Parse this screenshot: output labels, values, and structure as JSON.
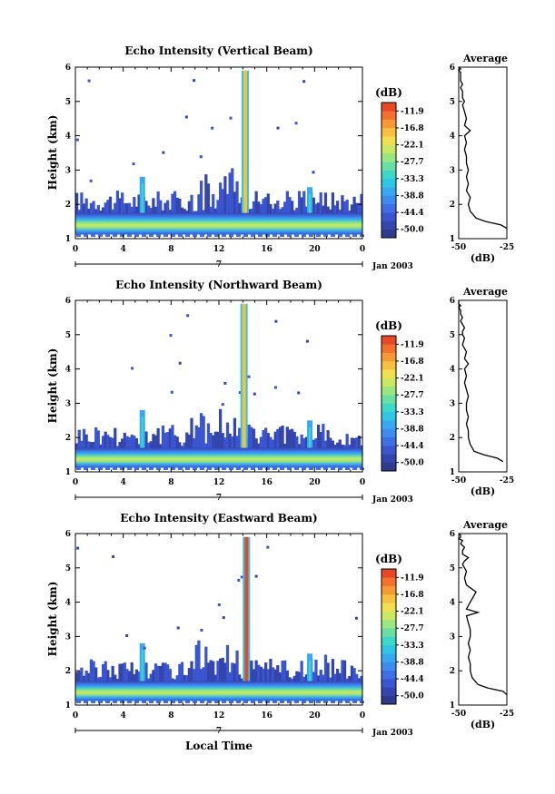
{
  "figure": {
    "xlabel": "Local Time",
    "date_label": "Jan 2003",
    "colorbar_unit": "(dB)",
    "avg_title": "Average",
    "avg_xlabel": "(dB)"
  },
  "colorscale": {
    "colors": [
      "#2e3a8a",
      "#3445ad",
      "#3a55cf",
      "#3f6ee6",
      "#3f8cf0",
      "#36aaf0",
      "#2ec6e4",
      "#3fd8c8",
      "#68e0a4",
      "#9ae680",
      "#cce860",
      "#f0e050",
      "#f8c040",
      "#f89a34",
      "#f4702c",
      "#e84828"
    ],
    "tick_labels": [
      "-11.9",
      "-16.8",
      "-22.1",
      "-27.7",
      "-33.3",
      "-38.8",
      "-44.4",
      "-50.0"
    ]
  },
  "chart_data": [
    {
      "type": "heatmap",
      "title": "Echo Intensity (Vertical Beam)",
      "xlabel": "",
      "ylabel": "Height (km)",
      "xlim": [
        0,
        24
      ],
      "ylim": [
        1,
        6
      ],
      "xticks": [
        "0",
        "4",
        "8",
        "12",
        "16",
        "20",
        "0"
      ],
      "yticks": [
        "1",
        "2",
        "3",
        "4",
        "5",
        "6"
      ],
      "secondary_axis": {
        "label": "7",
        "date": "Jan 2003"
      },
      "value_unit": "dB",
      "value_range": [
        -50.0,
        -11.9
      ],
      "features": {
        "surface_layer_top_km": 1.75,
        "clutter_top_km": 2.35,
        "spike_at_local_time": 14.2,
        "spike_top_km": 5.9,
        "peak_intensity_db": -20
      },
      "profile": {
        "type": "line",
        "title": "Average",
        "xlabel": "(dB)",
        "xlim": [
          -50,
          -25
        ],
        "ylim": [
          1,
          6
        ],
        "xticks": [
          "-50",
          "-25"
        ],
        "yticks": [
          "1",
          "2",
          "3",
          "4",
          "5",
          "6"
        ],
        "x": [
          -25,
          -28,
          -36,
          -41,
          -44,
          -45,
          -44,
          -46,
          -45,
          -46,
          -45,
          -46,
          -46,
          -47,
          -46,
          -47,
          -44,
          -47,
          -46,
          -47,
          -48,
          -47,
          -48,
          -48,
          -48,
          -49,
          -48,
          -49,
          -49,
          -49,
          -49,
          -50,
          -49,
          -50
        ],
        "y": [
          1.3,
          1.4,
          1.5,
          1.6,
          1.8,
          2.0,
          2.2,
          2.4,
          2.6,
          2.8,
          3.0,
          3.2,
          3.4,
          3.6,
          3.8,
          4.0,
          4.15,
          4.3,
          4.5,
          4.7,
          4.9,
          5.0,
          5.1,
          5.2,
          5.3,
          5.4,
          5.5,
          5.6,
          5.7,
          5.8,
          5.85,
          5.9,
          5.95,
          6.0
        ]
      }
    },
    {
      "type": "heatmap",
      "title": "Echo Intensity (Northward Beam)",
      "xlabel": "",
      "ylabel": "Height (km)",
      "xlim": [
        0,
        24
      ],
      "ylim": [
        1,
        6
      ],
      "xticks": [
        "0",
        "4",
        "8",
        "12",
        "16",
        "20",
        "0"
      ],
      "yticks": [
        "1",
        "2",
        "3",
        "4",
        "5",
        "6"
      ],
      "secondary_axis": {
        "label": "7",
        "date": "Jan 2003"
      },
      "value_unit": "dB",
      "value_range": [
        -50.0,
        -11.9
      ],
      "features": {
        "surface_layer_top_km": 1.7,
        "clutter_top_km": 2.35,
        "spike_at_local_time": 14.1,
        "spike_top_km": 5.9,
        "peak_intensity_db": -20
      },
      "profile": {
        "type": "line",
        "title": "Average",
        "xlabel": "(dB)",
        "xlim": [
          -50,
          -25
        ],
        "ylim": [
          1,
          6
        ],
        "xticks": [
          "-50",
          "-25"
        ],
        "yticks": [
          "1",
          "2",
          "3",
          "4",
          "5",
          "6"
        ],
        "x": [
          -27,
          -30,
          -37,
          -42,
          -44,
          -45,
          -45,
          -46,
          -45,
          -46,
          -46,
          -45,
          -46,
          -47,
          -46,
          -47,
          -45,
          -47,
          -46,
          -48,
          -47,
          -48,
          -48,
          -47,
          -48,
          -49,
          -48,
          -49,
          -49,
          -50,
          -49,
          -50,
          -50,
          -50
        ],
        "y": [
          1.3,
          1.4,
          1.5,
          1.6,
          1.8,
          2.0,
          2.2,
          2.4,
          2.6,
          2.8,
          3.0,
          3.2,
          3.4,
          3.6,
          3.8,
          4.0,
          4.15,
          4.3,
          4.5,
          4.7,
          4.9,
          5.0,
          5.1,
          5.2,
          5.3,
          5.4,
          5.5,
          5.6,
          5.7,
          5.8,
          5.85,
          5.9,
          5.95,
          6.0
        ]
      }
    },
    {
      "type": "heatmap",
      "title": "Echo Intensity (Eastward Beam)",
      "xlabel": "Local Time",
      "ylabel": "Height (km)",
      "xlim": [
        0,
        24
      ],
      "ylim": [
        1,
        6
      ],
      "xticks": [
        "0",
        "4",
        "8",
        "12",
        "16",
        "20",
        "0"
      ],
      "yticks": [
        "1",
        "2",
        "3",
        "4",
        "5",
        "6"
      ],
      "secondary_axis": {
        "label": "7",
        "date": "Jan 2003"
      },
      "value_unit": "dB",
      "value_range": [
        -50.0,
        -11.9
      ],
      "features": {
        "surface_layer_top_km": 1.7,
        "clutter_top_km": 2.3,
        "spike_at_local_time": 14.3,
        "spike_top_km": 5.9,
        "peak_intensity_db": -12
      },
      "profile": {
        "type": "line",
        "title": "Average",
        "xlabel": "(dB)",
        "xlim": [
          -50,
          -25
        ],
        "ylim": [
          1,
          6
        ],
        "xticks": [
          "-50",
          "-25"
        ],
        "yticks": [
          "1",
          "2",
          "3",
          "4",
          "5",
          "6"
        ],
        "x": [
          -25,
          -27,
          -35,
          -40,
          -43,
          -44,
          -44,
          -45,
          -44,
          -45,
          -44,
          -44,
          -45,
          -46,
          -40,
          -46,
          -44,
          -41,
          -46,
          -47,
          -46,
          -47,
          -48,
          -47,
          -45,
          -48,
          -48,
          -47,
          -49,
          -48,
          -50,
          -49,
          -49,
          -50
        ],
        "y": [
          1.3,
          1.4,
          1.5,
          1.6,
          1.8,
          2.0,
          2.2,
          2.4,
          2.6,
          2.8,
          3.0,
          3.2,
          3.4,
          3.6,
          3.7,
          3.8,
          4.0,
          4.3,
          4.5,
          4.7,
          4.9,
          5.0,
          5.1,
          5.2,
          5.3,
          5.4,
          5.5,
          5.6,
          5.7,
          5.8,
          5.85,
          5.9,
          5.95,
          6.0
        ]
      }
    }
  ]
}
